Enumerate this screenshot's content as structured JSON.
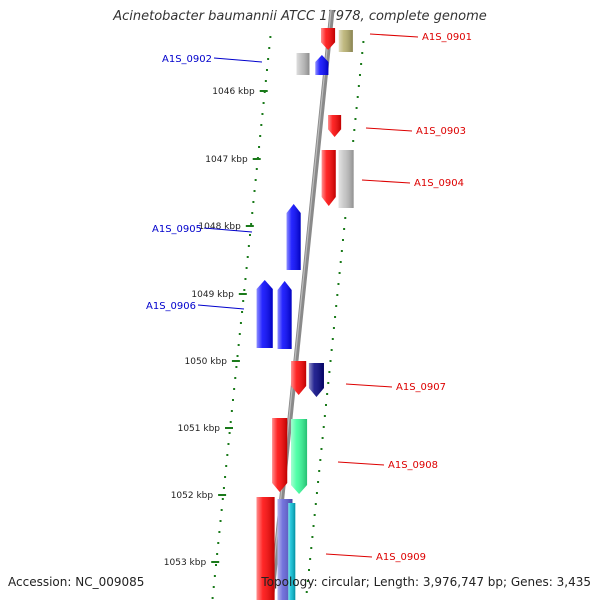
{
  "title": "Acinetobacter baumannii ATCC 17978, complete genome",
  "accession": "Accession: NC_009085",
  "topology": "Topology: circular; Length: 3,976,747 bp; Genes: 3,435",
  "colors": {
    "forward_label": "#0000cc",
    "reverse_label": "#dd0000",
    "tick": "#1a7a1a",
    "backbone": "#8a8a8a"
  },
  "ticks": [
    "1046 kbp",
    "1047 kbp",
    "1048 kbp",
    "1049 kbp",
    "1050 kbp",
    "1051 kbp",
    "1052 kbp",
    "1053 kbp"
  ],
  "labels": [
    {
      "text": "A1S_0901",
      "side": "right"
    },
    {
      "text": "A1S_0902",
      "side": "left"
    },
    {
      "text": "A1S_0903",
      "side": "right"
    },
    {
      "text": "A1S_0904",
      "side": "right"
    },
    {
      "text": "A1S_0905",
      "side": "left"
    },
    {
      "text": "A1S_0906",
      "side": "left"
    },
    {
      "text": "A1S_0907",
      "side": "right"
    },
    {
      "text": "A1S_0908",
      "side": "right"
    },
    {
      "text": "A1S_0909",
      "side": "right"
    }
  ],
  "genes": [
    {
      "strand": "reverse",
      "color": "#ff0000",
      "kind": "arrow-down"
    },
    {
      "strand": "reverse",
      "color": "#b5ad6a",
      "kind": "block"
    },
    {
      "strand": "forward",
      "color": "#b8b8b8",
      "kind": "block"
    },
    {
      "strand": "forward",
      "color": "#0000ff",
      "kind": "arrow-up"
    },
    {
      "strand": "reverse",
      "color": "#ff0000",
      "kind": "arrow-down"
    },
    {
      "strand": "reverse",
      "color": "#ff0000",
      "kind": "arrow-down"
    },
    {
      "strand": "reverse",
      "color": "#c0c0c0",
      "kind": "block"
    },
    {
      "strand": "forward",
      "color": "#0000ff",
      "kind": "arrow-up"
    },
    {
      "strand": "forward",
      "color": "#0000ff",
      "kind": "arrow-up"
    },
    {
      "strand": "forward",
      "color": "#0000ff",
      "kind": "arrow-up"
    },
    {
      "strand": "reverse",
      "color": "#ff0000",
      "kind": "arrow-down"
    },
    {
      "strand": "reverse",
      "color": "#000080",
      "kind": "arrow-down"
    },
    {
      "strand": "reverse",
      "color": "#ff0000",
      "kind": "arrow-down"
    },
    {
      "strand": "reverse",
      "color": "#33ff99",
      "kind": "arrow-down"
    },
    {
      "strand": "reverse",
      "color": "#ff0000",
      "kind": "block"
    },
    {
      "strand": "reverse",
      "color": "#5b5bd6",
      "kind": "block"
    },
    {
      "strand": "reverse",
      "color": "#00bcd4",
      "kind": "block"
    }
  ]
}
